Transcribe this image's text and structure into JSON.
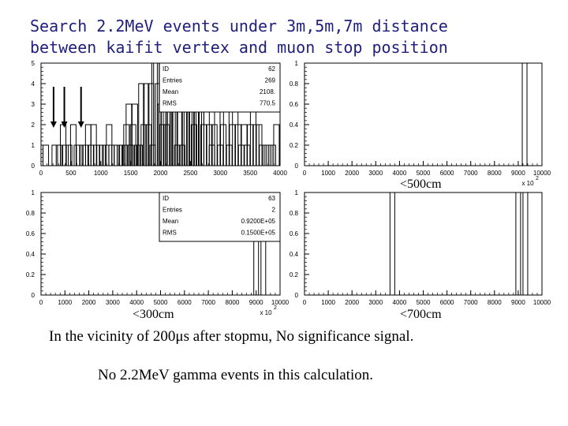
{
  "title": {
    "line1": "Search 2.2MeV events under 3m,5m,7m distance",
    "line2": "between kaifit vertex and muon stop position"
  },
  "panel_labels": {
    "top_right": "<500cm",
    "bottom_left": "<300cm",
    "bottom_right": "<700cm"
  },
  "footer": {
    "line1": "In the vicinity of 200μs after stopmu,  No significance signal.",
    "line2": "No 2.2MeV gamma events in this calculation."
  },
  "chart_data": [
    {
      "type": "bar",
      "panel": "top-left",
      "xlim": [
        0,
        4000
      ],
      "ylim": [
        0,
        5
      ],
      "xticks": [
        "0",
        "500",
        "1000",
        "1500",
        "2000",
        "2500",
        "3000",
        "3500",
        "4000"
      ],
      "yticks": [
        "0",
        "1",
        "2",
        "3",
        "4",
        "5"
      ],
      "stats": [
        {
          "label": "ID",
          "value": "62"
        },
        {
          "label": "Entries",
          "value": "269"
        },
        {
          "label": "Mean",
          "value": "2108."
        },
        {
          "label": "RMS",
          "value": "770.5"
        }
      ],
      "arrows_at_x": [
        210,
        390,
        670
      ],
      "x": [
        80,
        230,
        300,
        370,
        410,
        470,
        540,
        600,
        640,
        700,
        750,
        790,
        830,
        880,
        930,
        980,
        1030,
        1090,
        1140,
        1180,
        1230,
        1270,
        1320,
        1350,
        1400,
        1430,
        1470,
        1500,
        1540,
        1570,
        1610,
        1650,
        1680,
        1720,
        1760,
        1800,
        1840,
        1870,
        1900,
        1930,
        1960,
        2000,
        2030,
        2060,
        2100,
        2130,
        2160,
        2200,
        2240,
        2280,
        2320,
        2360,
        2400,
        2440,
        2480,
        2520,
        2560,
        2600,
        2640,
        2680,
        2720,
        2770,
        2820,
        2860,
        2900,
        2950,
        3000,
        3050,
        3100,
        3150,
        3200,
        3250,
        3300,
        3350,
        3400,
        3450,
        3500,
        3550,
        3600,
        3650,
        3700,
        3760,
        3820,
        3880,
        3940
      ],
      "values": [
        1,
        1,
        1,
        2,
        1,
        1,
        2,
        1,
        1,
        1,
        1,
        2,
        1,
        2,
        1,
        1,
        1,
        1,
        2,
        1,
        1,
        1,
        1,
        1,
        1,
        2,
        3,
        1,
        2,
        3,
        1,
        1,
        4,
        2,
        4,
        2,
        4,
        1,
        5,
        5,
        4,
        3,
        2,
        5,
        2,
        4,
        4,
        5,
        3,
        1,
        3,
        1,
        4,
        3,
        5,
        3,
        2,
        4,
        3,
        5,
        2,
        3,
        2,
        1,
        2,
        3,
        1,
        2,
        3,
        1,
        2,
        3,
        2,
        1,
        2,
        1,
        2,
        3,
        2,
        2,
        1,
        1,
        1,
        1,
        2
      ]
    },
    {
      "type": "bar",
      "panel": "top-right",
      "xlim": [
        0,
        10000
      ],
      "ylim": [
        0,
        1
      ],
      "x_multiplier": "x 10",
      "x_multiplier_exp": "2",
      "xticks": [
        "0",
        "1000",
        "2000",
        "3000",
        "4000",
        "5000",
        "6000",
        "7000",
        "8000",
        "9000",
        "10000"
      ],
      "yticks": [
        "0",
        "0.2",
        "0.4",
        "0.6",
        "0.8",
        "1"
      ],
      "x": [
        9270
      ],
      "values": [
        1
      ]
    },
    {
      "type": "bar",
      "panel": "bottom-left",
      "xlim": [
        0,
        10000
      ],
      "ylim": [
        0,
        1
      ],
      "x_multiplier": "x 10",
      "x_multiplier_exp": "2",
      "xticks": [
        "0",
        "1000",
        "2000",
        "3000",
        "4000",
        "5000",
        "6000",
        "7000",
        "8000",
        "9000",
        "10000"
      ],
      "yticks": [
        "0",
        "0.2",
        "0.4",
        "0.6",
        "0.8",
        "1"
      ],
      "stats": [
        {
          "label": "ID",
          "value": "63"
        },
        {
          "label": "Entries",
          "value": "2"
        },
        {
          "label": "Mean",
          "value": "0.9200E+05"
        },
        {
          "label": "RMS",
          "value": "0.1500E+05"
        }
      ],
      "x": [
        9000,
        9300
      ],
      "values": [
        1,
        1
      ]
    },
    {
      "type": "bar",
      "panel": "bottom-right",
      "xlim": [
        0,
        10000
      ],
      "ylim": [
        0,
        1
      ],
      "xticks": [
        "0",
        "1000",
        "2000",
        "3000",
        "4000",
        "5000",
        "6000",
        "7000",
        "8000",
        "9000",
        "10000"
      ],
      "yticks": [
        "0",
        "0.2",
        "0.4",
        "0.6",
        "0.8",
        "1"
      ],
      "x": [
        3700,
        9000,
        9300
      ],
      "values": [
        1,
        1,
        1
      ]
    }
  ]
}
